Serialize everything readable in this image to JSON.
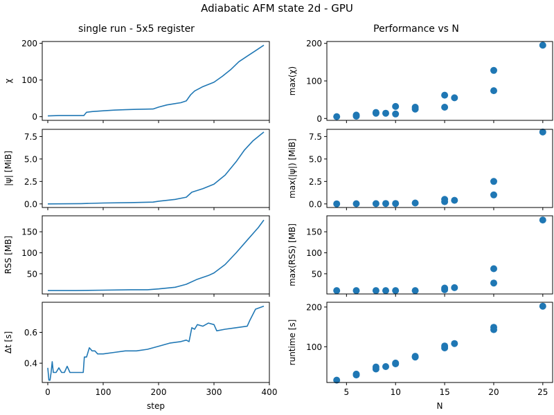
{
  "figure": {
    "title": "Adiabatic AFM state 2d - GPU",
    "left_title": "single run - 5x5 register",
    "right_title": "Performance vs N"
  },
  "colors": {
    "series": "#1f77b4",
    "axis": "#000000"
  },
  "chart_data": [
    {
      "type": "line",
      "panel": "chi-vs-step",
      "xlabel": "step",
      "ylabel": "χ",
      "xlim": [
        -10,
        400
      ],
      "ylim": [
        -10,
        205
      ],
      "xticks": [
        0,
        100,
        200,
        300,
        400
      ],
      "yticks": [
        0,
        100,
        200
      ],
      "x": [
        0,
        20,
        40,
        65,
        70,
        80,
        100,
        120,
        140,
        160,
        190,
        200,
        215,
        240,
        250,
        258,
        265,
        280,
        300,
        315,
        330,
        345,
        360,
        375,
        390
      ],
      "y": [
        2,
        3,
        3,
        3,
        12,
        14,
        16,
        18,
        19,
        20,
        21,
        26,
        32,
        38,
        43,
        60,
        70,
        82,
        94,
        110,
        128,
        150,
        165,
        180,
        195
      ]
    },
    {
      "type": "line",
      "panel": "psi-vs-step",
      "xlabel": "step",
      "ylabel": "|ψ| [MiB]",
      "xlim": [
        -10,
        400
      ],
      "ylim": [
        -0.4,
        8.3
      ],
      "xticks": [
        0,
        100,
        200,
        300,
        400
      ],
      "yticks": [
        0.0,
        2.5,
        5.0,
        7.5
      ],
      "x": [
        0,
        60,
        100,
        150,
        190,
        200,
        230,
        250,
        260,
        280,
        300,
        320,
        340,
        355,
        370,
        390
      ],
      "y": [
        0.0,
        0.03,
        0.1,
        0.15,
        0.2,
        0.3,
        0.5,
        0.75,
        1.3,
        1.7,
        2.2,
        3.2,
        4.7,
        6.0,
        7.0,
        8.0
      ]
    },
    {
      "type": "line",
      "panel": "rss-vs-step",
      "xlabel": "step",
      "ylabel": "RSS [MB]",
      "xlim": [
        -10,
        400
      ],
      "ylim": [
        2,
        188
      ],
      "xticks": [
        0,
        100,
        200,
        300,
        400
      ],
      "yticks": [
        50,
        100,
        150
      ],
      "x": [
        0,
        50,
        100,
        150,
        180,
        200,
        230,
        250,
        270,
        290,
        300,
        320,
        340,
        360,
        380,
        390
      ],
      "y": [
        10,
        10,
        11,
        12,
        12,
        14,
        18,
        25,
        37,
        46,
        52,
        72,
        100,
        130,
        160,
        178
      ]
    },
    {
      "type": "line",
      "panel": "dt-vs-step",
      "xlabel": "step",
      "ylabel": "Δt [s]",
      "xlim": [
        -10,
        400
      ],
      "ylim": [
        0.275,
        0.795
      ],
      "xticks": [
        0,
        100,
        200,
        300,
        400
      ],
      "yticks": [
        0.4,
        0.6
      ],
      "x": [
        0,
        2,
        4,
        6,
        8,
        10,
        12,
        15,
        20,
        25,
        30,
        35,
        40,
        45,
        50,
        55,
        60,
        64,
        66,
        70,
        75,
        80,
        85,
        90,
        100,
        120,
        140,
        160,
        180,
        200,
        220,
        240,
        250,
        255,
        260,
        265,
        270,
        280,
        290,
        300,
        305,
        320,
        340,
        360,
        365,
        375,
        390
      ],
      "y": [
        0.37,
        0.29,
        0.29,
        0.34,
        0.41,
        0.34,
        0.34,
        0.34,
        0.37,
        0.34,
        0.34,
        0.38,
        0.34,
        0.34,
        0.34,
        0.34,
        0.34,
        0.34,
        0.44,
        0.44,
        0.5,
        0.48,
        0.48,
        0.46,
        0.46,
        0.47,
        0.48,
        0.48,
        0.49,
        0.51,
        0.53,
        0.54,
        0.55,
        0.54,
        0.63,
        0.62,
        0.65,
        0.64,
        0.66,
        0.65,
        0.61,
        0.62,
        0.63,
        0.64,
        0.68,
        0.75,
        0.77
      ]
    },
    {
      "type": "scatter",
      "panel": "max-chi-vs-N",
      "xlabel": "N",
      "ylabel": "max(χ)",
      "xlim": [
        3,
        26
      ],
      "ylim": [
        -5,
        205
      ],
      "xticks": [
        5,
        10,
        15,
        20,
        25
      ],
      "yticks": [
        0,
        100,
        200
      ],
      "x": [
        4,
        6,
        6,
        8,
        8,
        9,
        10,
        10,
        12,
        12,
        15,
        15,
        16,
        20,
        20,
        25
      ],
      "y": [
        5,
        6,
        9,
        14,
        16,
        14,
        12,
        32,
        25,
        30,
        30,
        62,
        55,
        74,
        128,
        195
      ]
    },
    {
      "type": "scatter",
      "panel": "max-psi-vs-N",
      "xlabel": "N",
      "ylabel": "max(|ψ|) [MiB]",
      "xlim": [
        3,
        26
      ],
      "ylim": [
        -0.4,
        8.3
      ],
      "xticks": [
        5,
        10,
        15,
        20,
        25
      ],
      "yticks": [
        0.0,
        2.5,
        5.0,
        7.5
      ],
      "x": [
        4,
        6,
        8,
        9,
        10,
        12,
        15,
        15,
        16,
        20,
        20,
        25
      ],
      "y": [
        0.01,
        0.02,
        0.03,
        0.05,
        0.05,
        0.1,
        0.25,
        0.5,
        0.4,
        1.0,
        2.5,
        8.0
      ]
    },
    {
      "type": "scatter",
      "panel": "max-rss-vs-N",
      "xlabel": "N",
      "ylabel": "max(RSS) [MB]",
      "xlim": [
        3,
        26
      ],
      "ylim": [
        2,
        188
      ],
      "xticks": [
        5,
        10,
        15,
        20,
        25
      ],
      "yticks": [
        50,
        100,
        150
      ],
      "x": [
        4,
        6,
        8,
        9,
        10,
        12,
        15,
        15,
        16,
        20,
        20,
        25
      ],
      "y": [
        10,
        10,
        10,
        10,
        10,
        10,
        12,
        16,
        17,
        28,
        62,
        178
      ]
    },
    {
      "type": "scatter",
      "panel": "runtime-vs-N",
      "xlabel": "N",
      "ylabel": "runtime [s]",
      "xlim": [
        3,
        26
      ],
      "ylim": [
        10,
        212
      ],
      "xticks": [
        5,
        10,
        15,
        20,
        25
      ],
      "yticks": [
        100,
        200
      ],
      "x": [
        4,
        6,
        6,
        8,
        8,
        9,
        10,
        10,
        12,
        12,
        15,
        15,
        16,
        20,
        20,
        25
      ],
      "y": [
        16,
        29,
        31,
        44,
        49,
        50,
        57,
        59,
        74,
        76,
        97,
        102,
        108,
        143,
        149,
        202
      ]
    }
  ]
}
